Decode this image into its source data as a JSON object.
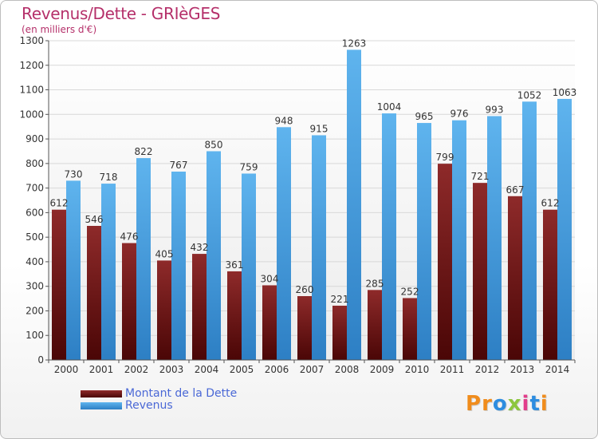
{
  "header": {
    "title": "Revenus/Dette - GRIèGES",
    "subtitle": "(en milliers d'€)"
  },
  "logo": {
    "text": "Proxiti",
    "colors": [
      "#f08c1c",
      "#f08c1c",
      "#2d8de0",
      "#8cc63e",
      "#e23d8b",
      "#2d8de0",
      "#f08c1c"
    ]
  },
  "chart_data": {
    "type": "bar",
    "title": "Revenus/Dette - GRIèGES",
    "subtitle": "(en milliers d'€)",
    "categories": [
      "2000",
      "2001",
      "2002",
      "2003",
      "2004",
      "2005",
      "2006",
      "2007",
      "2008",
      "2009",
      "2010",
      "2011",
      "2012",
      "2013",
      "2014"
    ],
    "series": [
      {
        "name": "Montant de la Dette",
        "color": "#7a1c1c",
        "values": [
          612,
          546,
          476,
          405,
          432,
          361,
          304,
          260,
          221,
          285,
          252,
          799,
          721,
          667,
          612
        ]
      },
      {
        "name": "Revenus",
        "color": "#4aa3e6",
        "values": [
          730,
          718,
          822,
          767,
          850,
          759,
          948,
          915,
          1263,
          1004,
          965,
          976,
          993,
          1052,
          1063
        ]
      }
    ],
    "ylim": [
      0,
      1300
    ],
    "yticks": [
      0,
      100,
      200,
      300,
      400,
      500,
      600,
      700,
      800,
      900,
      1000,
      1100,
      1200,
      1300
    ],
    "grid": true,
    "legend_position": "bottom-left"
  }
}
